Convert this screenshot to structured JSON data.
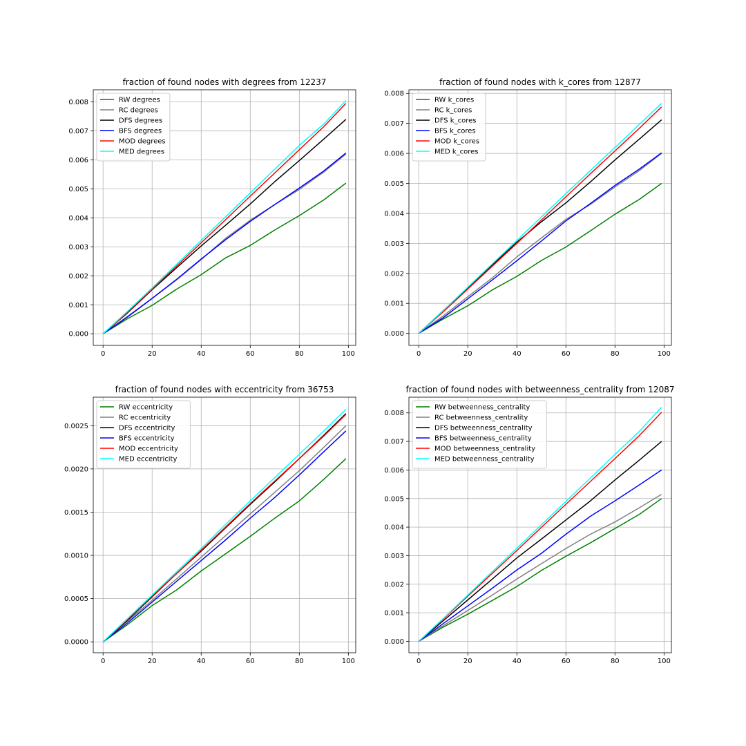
{
  "figure": {
    "background": "#ffffff"
  },
  "colors": {
    "RW": "#008000",
    "RC": "#808080",
    "DFS": "#000000",
    "BFS": "#0000ff",
    "MOD": "#ff0000",
    "MED": "#00ffff",
    "grid": "#b0b0b0"
  },
  "chart_data": [
    {
      "type": "line",
      "title": "fraction of found nodes with degrees from 12237",
      "xlabel": "",
      "ylabel": "",
      "xlim": [
        -4,
        103
      ],
      "ylim": [
        -0.0004,
        0.00842
      ],
      "xticks": [
        0,
        20,
        40,
        60,
        80,
        100
      ],
      "xtick_labels": [
        "0",
        "20",
        "40",
        "60",
        "80",
        "100"
      ],
      "yticks": [
        0,
        0.001,
        0.002,
        0.003,
        0.004,
        0.005,
        0.006,
        0.007,
        0.008
      ],
      "ytick_labels": [
        "0.000",
        "0.001",
        "0.002",
        "0.003",
        "0.004",
        "0.005",
        "0.006",
        "0.007",
        "0.008"
      ],
      "grid": true,
      "legend": "upper left",
      "series": [
        {
          "name": "RW degrees",
          "key": "RW",
          "x": [
            0,
            10,
            20,
            30,
            40,
            50,
            60,
            70,
            80,
            90,
            99
          ],
          "y": [
            0.0,
            0.00052,
            0.00098,
            0.00154,
            0.00204,
            0.00262,
            0.00305,
            0.00358,
            0.00408,
            0.00462,
            0.0052
          ]
        },
        {
          "name": "RC degrees",
          "key": "RC",
          "x": [
            0,
            10,
            20,
            30,
            40,
            50,
            60,
            70,
            80,
            90,
            99
          ],
          "y": [
            0.0,
            0.0006,
            0.00122,
            0.00186,
            0.00256,
            0.0033,
            0.00392,
            0.00446,
            0.00498,
            0.00558,
            0.0062
          ]
        },
        {
          "name": "DFS degrees",
          "key": "DFS",
          "x": [
            0,
            10,
            20,
            30,
            40,
            50,
            60,
            70,
            80,
            90,
            99
          ],
          "y": [
            0.0,
            0.00072,
            0.00152,
            0.00228,
            0.00303,
            0.00375,
            0.00448,
            0.00525,
            0.00598,
            0.00672,
            0.0074
          ]
        },
        {
          "name": "BFS degrees",
          "key": "BFS",
          "x": [
            0,
            10,
            20,
            30,
            40,
            50,
            60,
            70,
            80,
            90,
            99
          ],
          "y": [
            0.0,
            0.00058,
            0.00122,
            0.00188,
            0.00258,
            0.00325,
            0.00388,
            0.00446,
            0.00503,
            0.00562,
            0.00624
          ]
        },
        {
          "name": "MOD degrees",
          "key": "MOD",
          "x": [
            0,
            10,
            20,
            30,
            40,
            50,
            60,
            70,
            80,
            90,
            99
          ],
          "y": [
            0.0,
            0.00074,
            0.00154,
            0.00234,
            0.00314,
            0.00394,
            0.00475,
            0.00555,
            0.00635,
            0.00715,
            0.00795
          ]
        },
        {
          "name": "MED degrees",
          "key": "MED",
          "x": [
            0,
            10,
            20,
            30,
            40,
            50,
            60,
            70,
            80,
            90,
            99
          ],
          "y": [
            0.0,
            0.00078,
            0.00158,
            0.0024,
            0.00322,
            0.00404,
            0.00486,
            0.00568,
            0.0065,
            0.00724,
            0.00805
          ]
        }
      ]
    },
    {
      "type": "line",
      "title": "fraction of found nodes with k_cores from 12877",
      "xlabel": "",
      "ylabel": "",
      "xlim": [
        -4,
        103
      ],
      "ylim": [
        -0.0004,
        0.00812
      ],
      "xticks": [
        0,
        20,
        40,
        60,
        80,
        100
      ],
      "xtick_labels": [
        "0",
        "20",
        "40",
        "60",
        "80",
        "100"
      ],
      "yticks": [
        0,
        0.001,
        0.002,
        0.003,
        0.004,
        0.005,
        0.006,
        0.007,
        0.008
      ],
      "ytick_labels": [
        "0.000",
        "0.001",
        "0.002",
        "0.003",
        "0.004",
        "0.005",
        "0.006",
        "0.007",
        "0.008"
      ],
      "grid": true,
      "legend": "upper left",
      "series": [
        {
          "name": "RW k_cores",
          "key": "RW",
          "x": [
            0,
            10,
            20,
            30,
            40,
            50,
            60,
            70,
            80,
            90,
            99
          ],
          "y": [
            0.0,
            0.00048,
            0.00092,
            0.00145,
            0.0019,
            0.00243,
            0.00288,
            0.00342,
            0.00397,
            0.00447,
            0.005
          ]
        },
        {
          "name": "RC k_cores",
          "key": "RC",
          "x": [
            0,
            10,
            20,
            30,
            40,
            50,
            60,
            70,
            80,
            90,
            99
          ],
          "y": [
            0.0,
            0.00058,
            0.00122,
            0.00185,
            0.00255,
            0.00318,
            0.0038,
            0.0043,
            0.00488,
            0.00543,
            0.006
          ]
        },
        {
          "name": "DFS k_cores",
          "key": "DFS",
          "x": [
            0,
            10,
            20,
            30,
            40,
            50,
            60,
            70,
            80,
            90,
            99
          ],
          "y": [
            0.0,
            0.00076,
            0.00152,
            0.00228,
            0.00304,
            0.00372,
            0.00435,
            0.00505,
            0.00578,
            0.00648,
            0.00712
          ]
        },
        {
          "name": "BFS k_cores",
          "key": "BFS",
          "x": [
            0,
            10,
            20,
            30,
            40,
            50,
            60,
            70,
            80,
            90,
            99
          ],
          "y": [
            0.0,
            0.00052,
            0.00115,
            0.00178,
            0.00242,
            0.00308,
            0.00375,
            0.00433,
            0.00493,
            0.00548,
            0.00602
          ]
        },
        {
          "name": "MOD k_cores",
          "key": "MOD",
          "x": [
            0,
            10,
            20,
            30,
            40,
            50,
            60,
            70,
            80,
            90,
            99
          ],
          "y": [
            0.0,
            0.00072,
            0.00148,
            0.00224,
            0.003,
            0.00378,
            0.00455,
            0.00532,
            0.00608,
            0.00684,
            0.00755
          ]
        },
        {
          "name": "MED k_cores",
          "key": "MED",
          "x": [
            0,
            10,
            20,
            30,
            40,
            50,
            60,
            70,
            80,
            90,
            99
          ],
          "y": [
            0.0,
            0.00076,
            0.00154,
            0.00232,
            0.0031,
            0.00388,
            0.00466,
            0.00543,
            0.0062,
            0.00697,
            0.00767
          ]
        }
      ]
    },
    {
      "type": "line",
      "title": "fraction of found nodes with eccentricity from 36753",
      "xlabel": "",
      "ylabel": "",
      "xlim": [
        -4,
        103
      ],
      "ylim": [
        -0.000126,
        0.00283
      ],
      "xticks": [
        0,
        20,
        40,
        60,
        80,
        100
      ],
      "xtick_labels": [
        "0",
        "20",
        "40",
        "60",
        "80",
        "100"
      ],
      "yticks": [
        0,
        0.0005,
        0.001,
        0.0015,
        0.002,
        0.0025
      ],
      "ytick_labels": [
        "0.0000",
        "0.0005",
        "0.0010",
        "0.0015",
        "0.0020",
        "0.0025"
      ],
      "grid": true,
      "legend": "upper left",
      "series": [
        {
          "name": "RW eccentricity",
          "key": "RW",
          "x": [
            0,
            10,
            20,
            30,
            40,
            50,
            60,
            70,
            80,
            90,
            99
          ],
          "y": [
            0.0,
            0.0002,
            0.00042,
            0.0006,
            0.00082,
            0.00102,
            0.00122,
            0.00143,
            0.00163,
            0.00188,
            0.00212
          ]
        },
        {
          "name": "RC eccentricity",
          "key": "RC",
          "x": [
            0,
            10,
            20,
            30,
            40,
            50,
            60,
            70,
            80,
            90,
            99
          ],
          "y": [
            0.0,
            0.00024,
            0.00048,
            0.00073,
            0.00098,
            0.00123,
            0.00148,
            0.00173,
            0.00198,
            0.00225,
            0.0025
          ]
        },
        {
          "name": "DFS eccentricity",
          "key": "DFS",
          "x": [
            0,
            10,
            20,
            30,
            40,
            50,
            60,
            70,
            80,
            90,
            99
          ],
          "y": [
            0.0,
            0.00025,
            0.00052,
            0.00079,
            0.00105,
            0.00132,
            0.00159,
            0.00185,
            0.00212,
            0.00239,
            0.00264
          ]
        },
        {
          "name": "BFS eccentricity",
          "key": "BFS",
          "x": [
            0,
            10,
            20,
            30,
            40,
            50,
            60,
            70,
            80,
            90,
            99
          ],
          "y": [
            0.0,
            0.00022,
            0.00046,
            0.0007,
            0.00094,
            0.00118,
            0.00143,
            0.00167,
            0.00193,
            0.0022,
            0.00244
          ]
        },
        {
          "name": "MOD eccentricity",
          "key": "MOD",
          "x": [
            0,
            10,
            20,
            30,
            40,
            50,
            60,
            70,
            80,
            90,
            99
          ],
          "y": [
            0.0,
            0.00026,
            0.00053,
            0.00079,
            0.00106,
            0.00133,
            0.0016,
            0.00186,
            0.00212,
            0.00238,
            0.00263
          ]
        },
        {
          "name": "MED eccentricity",
          "key": "MED",
          "x": [
            0,
            10,
            20,
            30,
            40,
            50,
            60,
            70,
            80,
            90,
            99
          ],
          "y": [
            0.0,
            0.00027,
            0.00054,
            0.00081,
            0.00108,
            0.00136,
            0.00163,
            0.0019,
            0.00217,
            0.00244,
            0.00269
          ]
        }
      ]
    },
    {
      "type": "line",
      "title": "fraction of found nodes with betweenness_centrality from 12087",
      "xlabel": "",
      "ylabel": "",
      "xlim": [
        -4,
        103
      ],
      "ylim": [
        -0.0004,
        0.00855
      ],
      "xticks": [
        0,
        20,
        40,
        60,
        80,
        100
      ],
      "xtick_labels": [
        "0",
        "20",
        "40",
        "60",
        "80",
        "100"
      ],
      "yticks": [
        0,
        0.001,
        0.002,
        0.003,
        0.004,
        0.005,
        0.006,
        0.007,
        0.008
      ],
      "ytick_labels": [
        "0.000",
        "0.001",
        "0.002",
        "0.003",
        "0.004",
        "0.005",
        "0.006",
        "0.007",
        "0.008"
      ],
      "grid": true,
      "legend": "upper left",
      "series": [
        {
          "name": "RW betweenness_centrality",
          "key": "RW",
          "x": [
            0,
            10,
            20,
            30,
            40,
            50,
            60,
            70,
            80,
            90,
            99
          ],
          "y": [
            0.0,
            0.0005,
            0.00095,
            0.00143,
            0.00192,
            0.00248,
            0.00298,
            0.00345,
            0.00395,
            0.00445,
            0.005
          ]
        },
        {
          "name": "RC betweenness_centrality",
          "key": "RC",
          "x": [
            0,
            10,
            20,
            30,
            40,
            50,
            60,
            70,
            80,
            90,
            99
          ],
          "y": [
            0.0,
            0.00055,
            0.00108,
            0.00162,
            0.00218,
            0.00272,
            0.00325,
            0.00375,
            0.00418,
            0.00468,
            0.00515
          ]
        },
        {
          "name": "DFS betweenness_centrality",
          "key": "DFS",
          "x": [
            0,
            10,
            20,
            30,
            40,
            50,
            60,
            70,
            80,
            90,
            99
          ],
          "y": [
            0.0,
            0.00072,
            0.00145,
            0.00218,
            0.00292,
            0.00358,
            0.00425,
            0.00492,
            0.00565,
            0.00635,
            0.007
          ]
        },
        {
          "name": "BFS betweenness_centrality",
          "key": "BFS",
          "x": [
            0,
            10,
            20,
            30,
            40,
            50,
            60,
            70,
            80,
            90,
            99
          ],
          "y": [
            0.0,
            0.00062,
            0.00124,
            0.00186,
            0.0025,
            0.00308,
            0.00375,
            0.00438,
            0.00492,
            0.00548,
            0.006
          ]
        },
        {
          "name": "MOD betweenness_centrality",
          "key": "MOD",
          "x": [
            0,
            10,
            20,
            30,
            40,
            50,
            60,
            70,
            80,
            90,
            99
          ],
          "y": [
            0.0,
            0.00078,
            0.00158,
            0.00238,
            0.00318,
            0.00399,
            0.0048,
            0.0056,
            0.0064,
            0.00721,
            0.00802
          ]
        },
        {
          "name": "MED betweenness_centrality",
          "key": "MED",
          "x": [
            0,
            10,
            20,
            30,
            40,
            50,
            60,
            70,
            80,
            90,
            99
          ],
          "y": [
            0.0,
            0.0008,
            0.00162,
            0.00244,
            0.00326,
            0.00408,
            0.0049,
            0.00572,
            0.00654,
            0.00736,
            0.0082
          ]
        }
      ]
    }
  ]
}
